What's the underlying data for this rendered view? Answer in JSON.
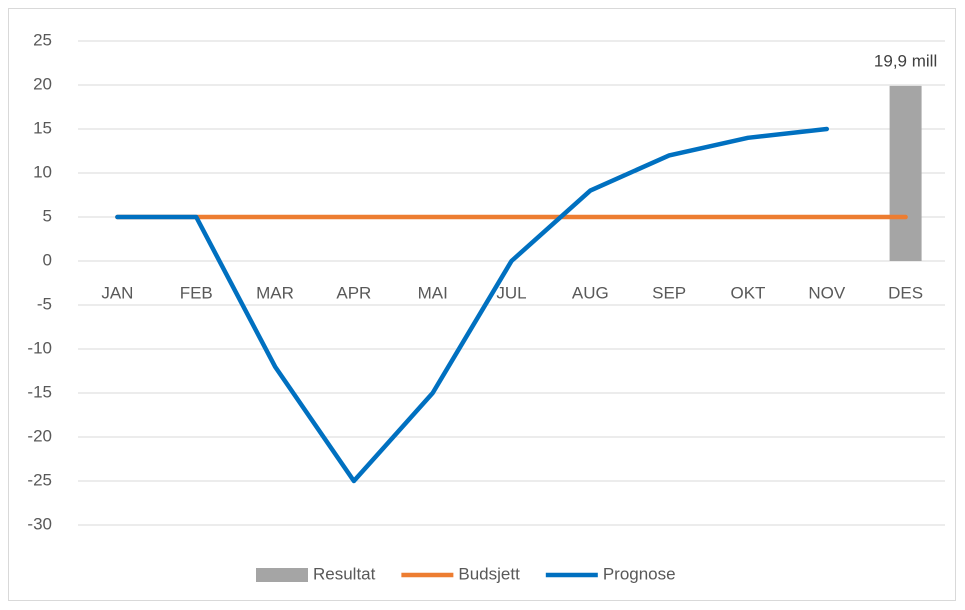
{
  "chart_data": {
    "type": "combo",
    "categories": [
      "JAN",
      "FEB",
      "MAR",
      "APR",
      "MAI",
      "JUL",
      "AUG",
      "SEP",
      "OKT",
      "NOV",
      "DES"
    ],
    "series": [
      {
        "name": "Resultat",
        "type": "bar",
        "color": "#a5a5a5",
        "values": [
          null,
          null,
          null,
          null,
          null,
          null,
          null,
          null,
          null,
          null,
          19.9
        ],
        "value_labels": [
          null,
          null,
          null,
          null,
          null,
          null,
          null,
          null,
          null,
          null,
          "19,9 mill"
        ]
      },
      {
        "name": "Budsjett",
        "type": "line",
        "color": "#ed7d31",
        "values": [
          5,
          5,
          5,
          5,
          5,
          5,
          5,
          5,
          5,
          5,
          5
        ]
      },
      {
        "name": "Prognose",
        "type": "line",
        "color": "#0070c0",
        "values": [
          5,
          5,
          -12,
          -25,
          -15,
          0,
          8,
          12,
          14,
          15,
          null
        ]
      }
    ],
    "ylim": [
      -30,
      25
    ],
    "yticks": [
      -30,
      -25,
      -20,
      -15,
      -10,
      -5,
      0,
      5,
      10,
      15,
      20,
      25
    ],
    "grid": true,
    "legend": "bottom"
  }
}
